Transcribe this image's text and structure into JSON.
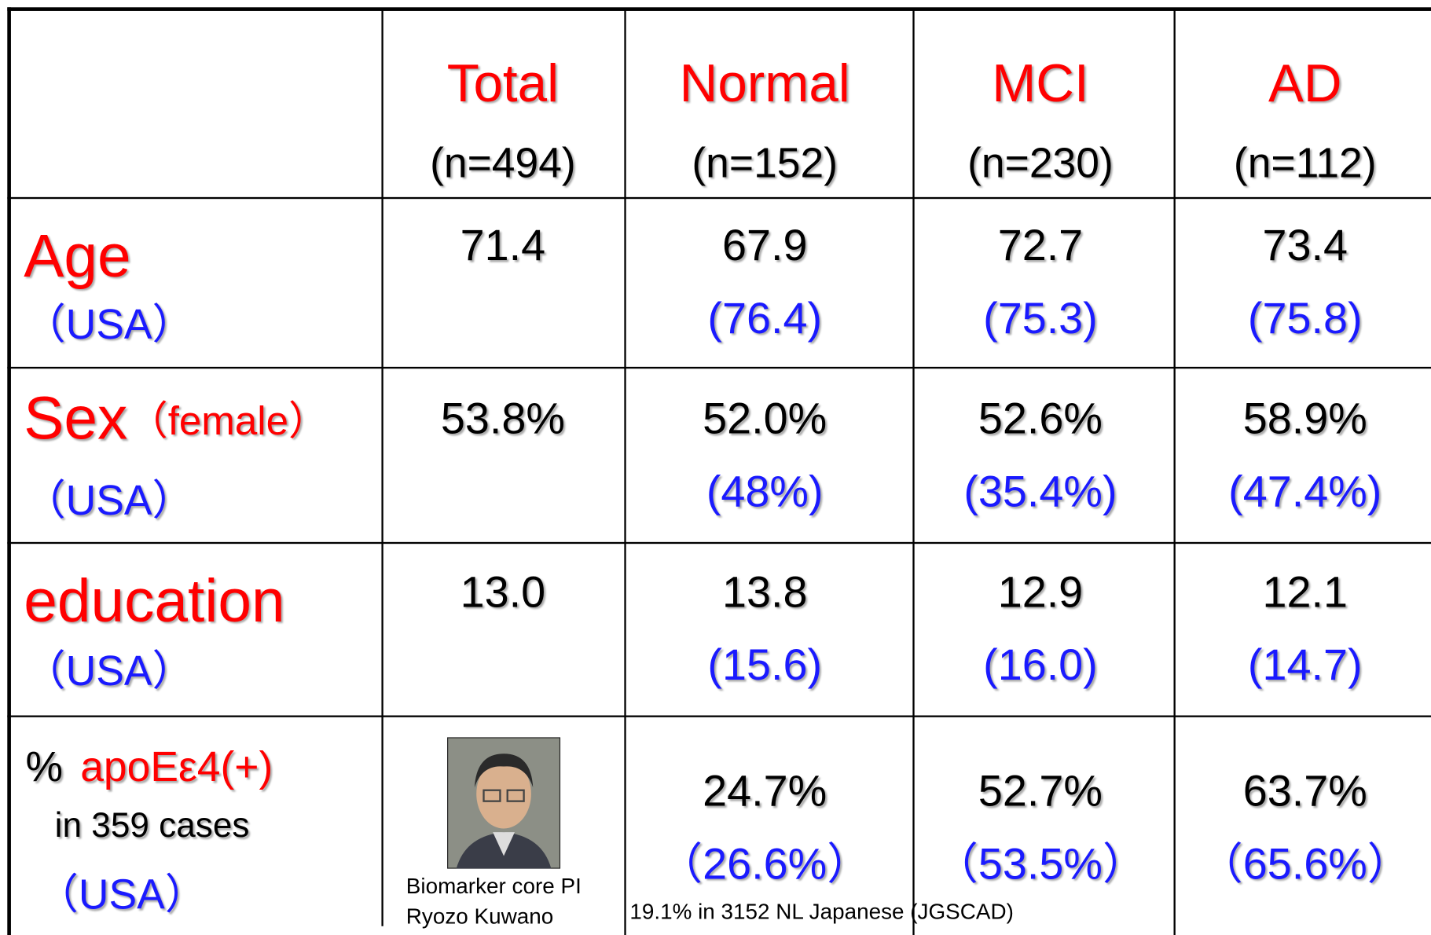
{
  "table": {
    "header": [
      {
        "title": "Total",
        "n": "(n=494)"
      },
      {
        "title": "Normal",
        "n": "(n=152)"
      },
      {
        "title": "MCI",
        "n": "(n=230)"
      },
      {
        "title": "AD",
        "n": "(n=112)"
      }
    ],
    "rows": [
      {
        "label": "Age",
        "sub": "（USA）",
        "cells": [
          {
            "main": "71.4"
          },
          {
            "main": "67.9",
            "usa": "(76.4)"
          },
          {
            "main": "72.7",
            "usa": "(75.3)"
          },
          {
            "main": "73.4",
            "usa": "(75.8)"
          }
        ]
      },
      {
        "label": "Sex",
        "label_note": "（female）",
        "sub": "（USA）",
        "cells": [
          {
            "main": "53.8%"
          },
          {
            "main": "52.0%",
            "usa": "(48%)"
          },
          {
            "main": "52.6%",
            "usa": "(35.4%)"
          },
          {
            "main": "58.9%",
            "usa": "(47.4%)"
          }
        ]
      },
      {
        "label": "education",
        "sub": "（USA）",
        "cells": [
          {
            "main": "13.0"
          },
          {
            "main": "13.8",
            "usa": "(15.6)"
          },
          {
            "main": "12.9",
            "usa": "(16.0)"
          },
          {
            "main": "12.1",
            "usa": "(14.7)"
          }
        ]
      },
      {
        "label_prefix": "%",
        "label": "apoEε4(+)",
        "label_note": "in 359 cases",
        "sub": "（USA）",
        "cells": [
          {
            "caption": [
              "Biomarker core PI",
              "Ryozo Kuwano"
            ]
          },
          {
            "main": "24.7%",
            "usa": "（26.6%）"
          },
          {
            "main": "52.7%",
            "usa": "（53.5%）"
          },
          {
            "main": "63.7%",
            "usa": "（65.6%）"
          }
        ]
      }
    ],
    "footnote": "19.1% in 3152 NL Japanese (JGSCAD)"
  }
}
